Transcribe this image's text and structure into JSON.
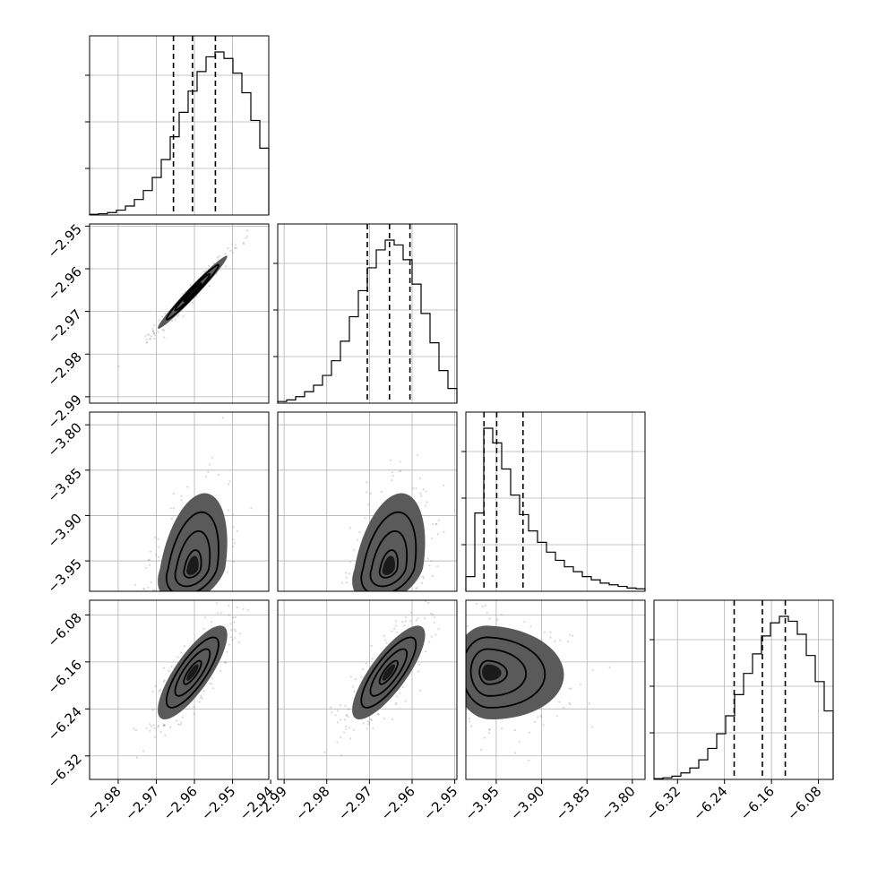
{
  "chart_data": {
    "type": "corner",
    "grid": true,
    "parameters": [
      {
        "index": 0,
        "range": [
          -2.9875,
          -2.9405
        ],
        "ticks": [
          -2.98,
          -2.97,
          -2.96,
          -2.95,
          -2.94
        ],
        "tick_labels": [
          "−2.98",
          "−2.97",
          "−2.96",
          "−2.95",
          "−2.94"
        ],
        "quantiles": [
          -2.9655,
          -2.9605,
          -2.9545
        ],
        "mode": -2.9605,
        "sigma": 0.0048
      },
      {
        "index": 1,
        "range": [
          -2.9915,
          -2.9495
        ],
        "ticks": [
          -2.99,
          -2.98,
          -2.97,
          -2.96,
          -2.95
        ],
        "tick_labels": [
          "−2.99",
          "−2.98",
          "−2.97",
          "−2.96",
          "−2.95"
        ],
        "quantiles": [
          -2.9705,
          -2.9653,
          -2.9605
        ],
        "mode": -2.9655,
        "sigma": 0.0045
      },
      {
        "index": 2,
        "range": [
          -3.9835,
          -3.786
        ],
        "ticks": [
          -3.95,
          -3.9,
          -3.85,
          -3.8
        ],
        "tick_labels": [
          "−3.95",
          "−3.90",
          "−3.85",
          "−3.80"
        ],
        "quantiles": [
          -3.9635,
          -3.9495,
          -3.9205
        ],
        "mode": -3.959,
        "sigma": 0.02
      },
      {
        "index": 3,
        "range": [
          -6.36,
          -6.055
        ],
        "ticks": [
          -6.32,
          -6.24,
          -6.16,
          -6.08
        ],
        "tick_labels": [
          "−6.32",
          "−6.24",
          "−6.16",
          "−6.08"
        ],
        "quantiles": [
          -6.2235,
          -6.1755,
          -6.1365
        ],
        "mode": -6.178,
        "sigma": 0.042
      }
    ],
    "panels_2d": [
      {
        "x": 0,
        "y": 1,
        "rho": 0.98
      },
      {
        "x": 0,
        "y": 2,
        "rho": 0.35
      },
      {
        "x": 1,
        "y": 2,
        "rho": 0.35
      },
      {
        "x": 0,
        "y": 3,
        "rho": 0.8
      },
      {
        "x": 1,
        "y": 3,
        "rho": 0.8
      },
      {
        "x": 2,
        "y": 3,
        "rho": -0.05
      }
    ],
    "histograms": [
      {
        "bins": 20,
        "counts": [
          0.4,
          0.8,
          1.5,
          3,
          5.5,
          9.5,
          15,
          23,
          34,
          48,
          63,
          76,
          88,
          97,
          100,
          96,
          87,
          75,
          58,
          41
        ]
      },
      {
        "bins": 20,
        "counts": [
          1,
          2,
          4,
          7,
          11,
          17,
          26,
          38,
          53,
          69,
          83,
          94,
          100,
          97,
          88,
          73,
          55,
          37,
          20,
          9
        ]
      },
      {
        "bins": 20,
        "counts": [
          9,
          48,
          100,
          91,
          75,
          59,
          47,
          37,
          30,
          24,
          19,
          15,
          12,
          9,
          7,
          5,
          4,
          3,
          2,
          1.5
        ]
      },
      {
        "bins": 20,
        "counts": [
          0.5,
          1,
          2,
          4,
          7,
          12,
          19,
          28,
          39,
          52,
          65,
          77,
          88,
          96,
          100,
          97,
          89,
          76,
          60,
          42
        ]
      }
    ],
    "contour_levels": [
      0.5,
      1.0,
      1.5,
      2.0
    ]
  }
}
